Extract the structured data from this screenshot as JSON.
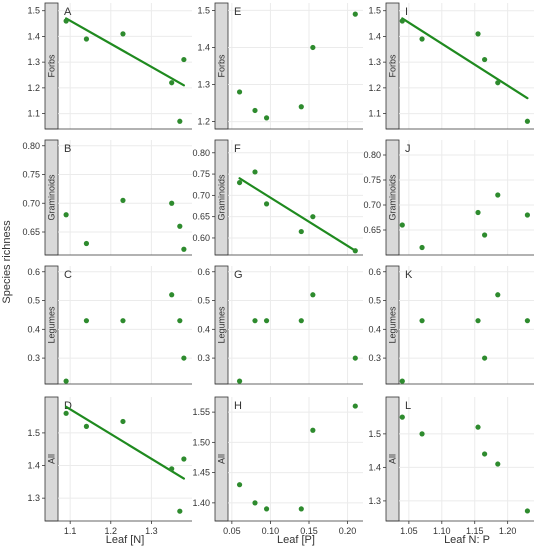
{
  "figure": {
    "ylabel": "Species richness",
    "xlabels": [
      "Leaf [N]",
      "Leaf [P]",
      "Leaf N: P"
    ],
    "row_labels": [
      "Forbs",
      "Graminoids",
      "Legumes",
      "All"
    ],
    "colors": {
      "points": "#2e8b2e",
      "line": "#1f8a1f",
      "strip": "#d9d9d9",
      "grid": "#ebebeb",
      "axis": "#333333",
      "text": "#333333"
    }
  },
  "chart_data": [
    {
      "type": "scatter",
      "panel": "A",
      "row": 0,
      "col": 0,
      "x": [
        1.09,
        1.14,
        1.23,
        1.35,
        1.37,
        1.38
      ],
      "y": [
        1.46,
        1.39,
        1.41,
        1.22,
        1.07,
        1.31
      ],
      "trend": [
        [
          1.09,
          1.47
        ],
        [
          1.38,
          1.21
        ]
      ],
      "xlim": [
        1.07,
        1.4
      ],
      "ylim": [
        1.04,
        1.53
      ],
      "xticks": [],
      "yticks": [
        1.1,
        1.2,
        1.3,
        1.4,
        1.5
      ],
      "yticklabels": [
        "1.1",
        "1.2",
        "1.3",
        "1.4",
        "1.5"
      ]
    },
    {
      "type": "scatter",
      "panel": "E",
      "row": 0,
      "col": 1,
      "x": [
        0.06,
        0.08,
        0.095,
        0.14,
        0.155,
        0.21
      ],
      "y": [
        1.28,
        1.23,
        1.21,
        1.24,
        1.4,
        1.49
      ],
      "trend": null,
      "xlim": [
        0.045,
        0.22
      ],
      "ylim": [
        1.18,
        1.52
      ],
      "xticks": [],
      "yticks": [
        1.2,
        1.3,
        1.4,
        1.5
      ],
      "yticklabels": [
        "1.2",
        "1.3",
        "1.4",
        "1.5"
      ]
    },
    {
      "type": "scatter",
      "panel": "I",
      "row": 0,
      "col": 2,
      "x": [
        1.04,
        1.07,
        1.155,
        1.165,
        1.185,
        1.23
      ],
      "y": [
        1.46,
        1.39,
        1.41,
        1.31,
        1.22,
        1.07
      ],
      "trend": [
        [
          1.04,
          1.47
        ],
        [
          1.23,
          1.16
        ]
      ],
      "xlim": [
        1.035,
        1.24
      ],
      "ylim": [
        1.04,
        1.53
      ],
      "xticks": [],
      "yticks": [
        1.1,
        1.2,
        1.3,
        1.4,
        1.5
      ],
      "yticklabels": [
        "1.1",
        "1.2",
        "1.3",
        "1.4",
        "1.5"
      ]
    },
    {
      "type": "scatter",
      "panel": "B",
      "row": 1,
      "col": 0,
      "x": [
        1.09,
        1.14,
        1.23,
        1.35,
        1.37,
        1.38
      ],
      "y": [
        0.68,
        0.63,
        0.705,
        0.7,
        0.66,
        0.62
      ],
      "trend": null,
      "xlim": [
        1.07,
        1.4
      ],
      "ylim": [
        0.61,
        0.81
      ],
      "xticks": [],
      "yticks": [
        0.65,
        0.7,
        0.75,
        0.8
      ],
      "yticklabels": [
        "0.65",
        "0.70",
        "0.75",
        "0.80"
      ]
    },
    {
      "type": "scatter",
      "panel": "F",
      "row": 1,
      "col": 1,
      "x": [
        0.06,
        0.08,
        0.095,
        0.14,
        0.155,
        0.21
      ],
      "y": [
        0.73,
        0.755,
        0.68,
        0.615,
        0.65,
        0.57
      ],
      "trend": [
        [
          0.06,
          0.74
        ],
        [
          0.21,
          0.57
        ]
      ],
      "xlim": [
        0.045,
        0.22
      ],
      "ylim": [
        0.56,
        0.83
      ],
      "xticks": [],
      "yticks": [
        0.6,
        0.65,
        0.7,
        0.75,
        0.8
      ],
      "yticklabels": [
        "0.60",
        "0.65",
        "0.70",
        "0.75",
        "0.80"
      ]
    },
    {
      "type": "scatter",
      "panel": "J",
      "row": 1,
      "col": 2,
      "x": [
        1.04,
        1.07,
        1.155,
        1.165,
        1.185,
        1.23
      ],
      "y": [
        0.66,
        0.615,
        0.685,
        0.64,
        0.72,
        0.68
      ],
      "trend": null,
      "xlim": [
        1.035,
        1.24
      ],
      "ylim": [
        0.6,
        0.83
      ],
      "xticks": [],
      "yticks": [
        0.65,
        0.7,
        0.75,
        0.8
      ],
      "yticklabels": [
        "0.65",
        "0.70",
        "0.75",
        "0.80"
      ]
    },
    {
      "type": "scatter",
      "panel": "C",
      "row": 2,
      "col": 0,
      "x": [
        1.09,
        1.14,
        1.23,
        1.35,
        1.37,
        1.38
      ],
      "y": [
        0.22,
        0.43,
        0.43,
        0.52,
        0.43,
        0.3
      ],
      "trend": null,
      "xlim": [
        1.07,
        1.4
      ],
      "ylim": [
        0.21,
        0.62
      ],
      "xticks": [],
      "yticks": [
        0.3,
        0.4,
        0.5,
        0.6
      ],
      "yticklabels": [
        "0.3",
        "0.4",
        "0.5",
        "0.6"
      ]
    },
    {
      "type": "scatter",
      "panel": "G",
      "row": 2,
      "col": 1,
      "x": [
        0.06,
        0.08,
        0.095,
        0.14,
        0.155,
        0.21
      ],
      "y": [
        0.22,
        0.43,
        0.43,
        0.43,
        0.52,
        0.3
      ],
      "trend": null,
      "xlim": [
        0.045,
        0.22
      ],
      "ylim": [
        0.21,
        0.62
      ],
      "xticks": [],
      "yticks": [
        0.3,
        0.4,
        0.5,
        0.6
      ],
      "yticklabels": [
        "0.3",
        "0.4",
        "0.5",
        "0.6"
      ]
    },
    {
      "type": "scatter",
      "panel": "K",
      "row": 2,
      "col": 2,
      "x": [
        1.04,
        1.07,
        1.155,
        1.165,
        1.185,
        1.23
      ],
      "y": [
        0.22,
        0.43,
        0.43,
        0.3,
        0.52,
        0.43
      ],
      "trend": null,
      "xlim": [
        1.035,
        1.24
      ],
      "ylim": [
        0.21,
        0.62
      ],
      "xticks": [],
      "yticks": [
        0.3,
        0.4,
        0.5,
        0.6
      ],
      "yticklabels": [
        "0.3",
        "0.4",
        "0.5",
        "0.6"
      ]
    },
    {
      "type": "scatter",
      "panel": "D",
      "row": 3,
      "col": 0,
      "x": [
        1.09,
        1.14,
        1.23,
        1.35,
        1.37,
        1.38
      ],
      "y": [
        1.56,
        1.52,
        1.535,
        1.39,
        1.26,
        1.42
      ],
      "trend": [
        [
          1.09,
          1.58
        ],
        [
          1.38,
          1.36
        ]
      ],
      "xlim": [
        1.07,
        1.4
      ],
      "ylim": [
        1.23,
        1.61
      ],
      "xticks": [
        1.1,
        1.2,
        1.3
      ],
      "xticklabels": [
        "1.1",
        "1.2",
        "1.3"
      ],
      "yticks": [
        1.3,
        1.4,
        1.5
      ],
      "yticklabels": [
        "1.3",
        "1.4",
        "1.5"
      ]
    },
    {
      "type": "scatter",
      "panel": "H",
      "row": 3,
      "col": 1,
      "x": [
        0.06,
        0.08,
        0.095,
        0.14,
        0.155,
        0.21
      ],
      "y": [
        1.43,
        1.4,
        1.39,
        1.39,
        1.52,
        1.56
      ],
      "trend": null,
      "xlim": [
        0.045,
        0.22
      ],
      "ylim": [
        1.37,
        1.575
      ],
      "xticks": [
        0.05,
        0.1,
        0.15,
        0.2
      ],
      "xticklabels": [
        "0.05",
        "0.10",
        "0.15",
        "0.20"
      ],
      "yticks": [
        1.4,
        1.45,
        1.5,
        1.55
      ],
      "yticklabels": [
        "1.40",
        "1.45",
        "1.50",
        "1.55"
      ]
    },
    {
      "type": "scatter",
      "panel": "L",
      "row": 3,
      "col": 2,
      "x": [
        1.04,
        1.07,
        1.155,
        1.165,
        1.185,
        1.23
      ],
      "y": [
        1.55,
        1.5,
        1.52,
        1.44,
        1.41,
        1.27
      ],
      "trend": null,
      "xlim": [
        1.035,
        1.24
      ],
      "ylim": [
        1.24,
        1.61
      ],
      "xticks": [
        1.05,
        1.1,
        1.15,
        1.2
      ],
      "xticklabels": [
        "1.05",
        "1.10",
        "1.15",
        "1.20"
      ],
      "yticks": [
        1.3,
        1.4,
        1.5
      ],
      "yticklabels": [
        "1.3",
        "1.4",
        "1.5"
      ]
    }
  ]
}
